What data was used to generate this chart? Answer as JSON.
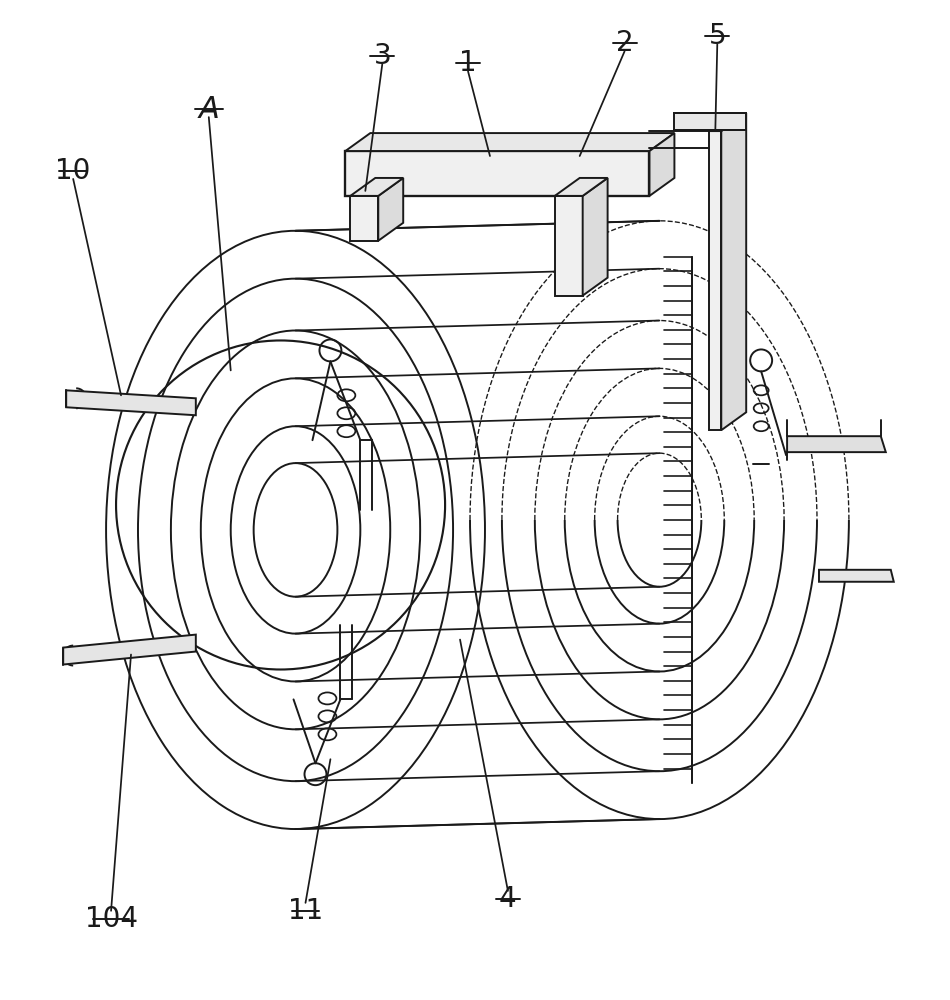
{
  "bg_color": "#ffffff",
  "line_color": "#1a1a1a",
  "line_width": 1.4,
  "label_fontsize": 20,
  "figsize": [
    9.5,
    10.0
  ],
  "dpi": 100
}
